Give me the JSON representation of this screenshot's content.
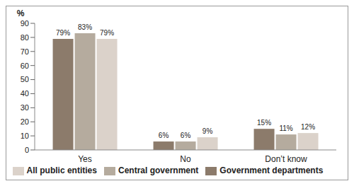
{
  "chart_data": {
    "type": "bar",
    "y_label": "%",
    "categories": [
      "Yes",
      "No",
      "Don’t know"
    ],
    "series": [
      {
        "name": "Government departments",
        "color": "#8c7b6b",
        "values": [
          79,
          6,
          15
        ],
        "value_labels": [
          "79%",
          "6%",
          "15%"
        ]
      },
      {
        "name": "Central government",
        "color": "#b5ab9e",
        "values": [
          83,
          6,
          11
        ],
        "value_labels": [
          "83%",
          "6%",
          "11%"
        ]
      },
      {
        "name": "All public entities",
        "color": "#dbd2ca",
        "values": [
          79,
          9,
          12
        ],
        "value_labels": [
          "79%",
          "9%",
          "12%"
        ]
      }
    ],
    "ylim": [
      0,
      90
    ],
    "yticks": [
      0,
      10,
      20,
      30,
      40,
      50,
      60,
      70,
      80,
      90
    ],
    "grid": false,
    "legend": "bottom",
    "data_labels": true
  }
}
